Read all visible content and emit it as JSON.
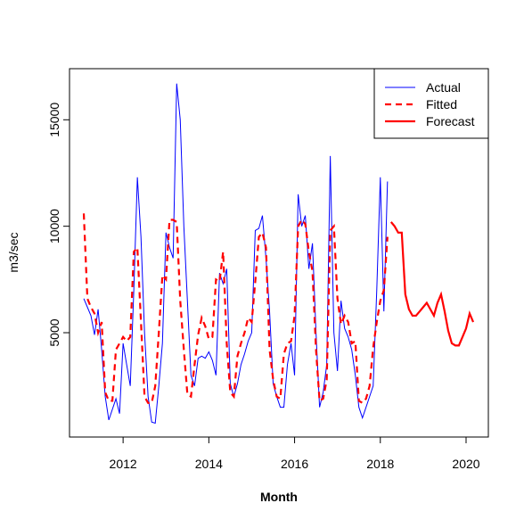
{
  "chart_data": {
    "type": "line",
    "xlabel": "Month",
    "ylabel": "m3/sec",
    "xlim": [
      2010.75,
      2020.52
    ],
    "ylim": [
      100,
      17400
    ],
    "xticks": [
      2012,
      2014,
      2016,
      2018,
      2020
    ],
    "yticks": [
      5000,
      10000,
      15000
    ],
    "legend": "top-right",
    "x": [
      2011.083,
      2011.167,
      2011.25,
      2011.333,
      2011.417,
      2011.5,
      2011.583,
      2011.667,
      2011.75,
      2011.833,
      2011.917,
      2012,
      2012.083,
      2012.167,
      2012.25,
      2012.333,
      2012.417,
      2012.5,
      2012.583,
      2012.667,
      2012.75,
      2012.833,
      2012.917,
      2013,
      2013.083,
      2013.167,
      2013.25,
      2013.333,
      2013.417,
      2013.5,
      2013.583,
      2013.667,
      2013.75,
      2013.833,
      2013.917,
      2014,
      2014.083,
      2014.167,
      2014.25,
      2014.333,
      2014.417,
      2014.5,
      2014.583,
      2014.667,
      2014.75,
      2014.833,
      2014.917,
      2015,
      2015.083,
      2015.167,
      2015.25,
      2015.333,
      2015.417,
      2015.5,
      2015.583,
      2015.667,
      2015.75,
      2015.833,
      2015.917,
      2016,
      2016.083,
      2016.167,
      2016.25,
      2016.333,
      2016.417,
      2016.5,
      2016.583,
      2016.667,
      2016.75,
      2016.833,
      2016.917,
      2017,
      2017.083,
      2017.167,
      2017.25,
      2017.333,
      2017.417,
      2017.5,
      2017.583,
      2017.667,
      2017.75,
      2017.833,
      2017.917,
      2018,
      2018.083,
      2018.167
    ],
    "series": [
      {
        "name": "Actual",
        "color": "#0000ff",
        "width": 1,
        "dashed": false,
        "values": [
          6600,
          6200,
          5800,
          4900,
          6100,
          4200,
          2000,
          900,
          1400,
          1900,
          1200,
          4500,
          3500,
          2500,
          7000,
          12300,
          9500,
          5000,
          2000,
          800,
          750,
          2500,
          4500,
          9700,
          9000,
          8500,
          16700,
          15000,
          10000,
          6500,
          3000,
          2500,
          3800,
          3900,
          3800,
          4100,
          3700,
          3000,
          7800,
          7300,
          8000,
          2600,
          2000,
          2600,
          3500,
          4000,
          4600,
          5000,
          9800,
          9900,
          10500,
          8500,
          6000,
          2600,
          2000,
          1500,
          1500,
          3500,
          4500,
          3000,
          11500,
          10000,
          10500,
          8000,
          9200,
          5000,
          1500,
          2200,
          3500,
          13300,
          5000,
          3200,
          6500,
          5200,
          4800,
          4200,
          3000,
          1500,
          1000,
          1500,
          2000,
          2500,
          7000,
          12300,
          6000,
          12100
        ]
      },
      {
        "name": "Fitted",
        "color": "#ff0000",
        "width": 2.2,
        "dashed": true,
        "values": [
          10600,
          6600,
          6200,
          5900,
          5000,
          5500,
          2200,
          1800,
          1800,
          4200,
          4500,
          4800,
          4600,
          4800,
          8800,
          9000,
          5500,
          2000,
          1700,
          1700,
          2500,
          5000,
          7700,
          7500,
          10300,
          10300,
          10200,
          6500,
          4200,
          2100,
          2000,
          3500,
          4900,
          5700,
          5300,
          4700,
          4800,
          7500,
          7400,
          8800,
          4500,
          2200,
          2000,
          3900,
          4500,
          5000,
          5700,
          5500,
          7400,
          9500,
          9700,
          9000,
          4200,
          2800,
          2000,
          1900,
          4000,
          4500,
          4600,
          5800,
          10000,
          10300,
          10100,
          8800,
          7900,
          4200,
          1800,
          1900,
          2800,
          9800,
          10000,
          6600,
          5400,
          5800,
          5500,
          4500,
          4600,
          1800,
          1700,
          1900,
          2500,
          4300,
          5500,
          6500,
          7000,
          9500
        ]
      },
      {
        "name": "Forecast",
        "color": "#ff0000",
        "width": 2.2,
        "dashed": false,
        "x": [
          2018.25,
          2018.333,
          2018.417,
          2018.5,
          2018.583,
          2018.667,
          2018.75,
          2018.833,
          2018.917,
          2019,
          2019.083,
          2019.167,
          2019.25,
          2019.333,
          2019.417,
          2019.5,
          2019.583,
          2019.667,
          2019.75,
          2019.833,
          2019.917,
          2020,
          2020.083,
          2020.167
        ],
        "values": [
          10200,
          10000,
          9700,
          9700,
          6800,
          6100,
          5800,
          5800,
          6000,
          6200,
          6400,
          6100,
          5800,
          6400,
          6800,
          6000,
          5100,
          4500,
          4400,
          4400,
          4800,
          5200,
          5900,
          5500
        ]
      }
    ]
  }
}
